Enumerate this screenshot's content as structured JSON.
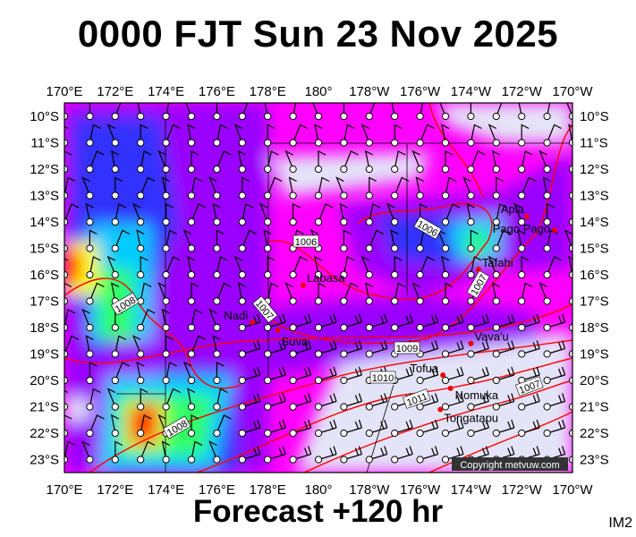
{
  "title": "0000 FJT Sun 23 Nov 2025",
  "footer": "Forecast +120 hr",
  "product_code": "IM2",
  "copyright": "Copyright metvuw.com",
  "longitudes": [
    "170°E",
    "172°E",
    "174°E",
    "176°E",
    "178°E",
    "180°",
    "178°W",
    "176°W",
    "174°W",
    "172°W",
    "170°W"
  ],
  "latitudes": [
    "10°S",
    "11°S",
    "12°S",
    "13°S",
    "14°S",
    "15°S",
    "16°S",
    "17°S",
    "18°S",
    "19°S",
    "20°S",
    "21°S",
    "22°S",
    "23°S"
  ],
  "places": [
    {
      "name": "Apia",
      "lon": -171.8,
      "lat": -13.8
    },
    {
      "name": "Pago Pago",
      "lon": -170.7,
      "lat": -14.3
    },
    {
      "name": "Tafahi",
      "lon": -173.7,
      "lat": -15.8
    },
    {
      "name": "Labasa",
      "lon": 179.4,
      "lat": -16.4
    },
    {
      "name": "Nadi",
      "lon": 177.4,
      "lat": -17.8
    },
    {
      "name": "Suva",
      "lon": 178.4,
      "lat": -18.1
    },
    {
      "name": "Vava'u",
      "lon": -174.0,
      "lat": -18.6
    },
    {
      "name": "Tofua",
      "lon": -175.1,
      "lat": -19.8
    },
    {
      "name": "Nomuka",
      "lon": -174.8,
      "lat": -20.3
    },
    {
      "name": "Tongatapu",
      "lon": -175.2,
      "lat": -21.1
    }
  ],
  "isobar_labels": [
    "1006",
    "1006",
    "1007",
    "1007",
    "1008",
    "1009",
    "1010",
    "1011",
    "1007",
    "1008"
  ],
  "colors": {
    "isobar": "#ff0000",
    "background_calm": "#e4e4f8",
    "magenta": "#ff00ff",
    "purple": "#9900ff",
    "blue": "#3333ff",
    "cyan": "#00ccff",
    "green": "#33ff66",
    "yellow": "#ffff00",
    "red": "#ff2200"
  }
}
